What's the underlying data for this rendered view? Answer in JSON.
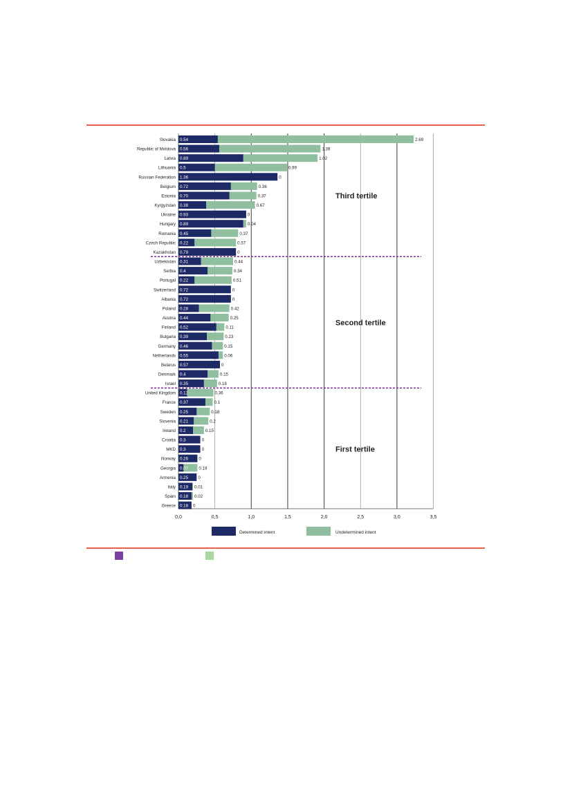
{
  "chart_data": {
    "type": "bar",
    "stacked": true,
    "orientation": "horizontal",
    "categories": [
      "Slovakia",
      "Republic of Moldova",
      "Latvia",
      "Lithuania",
      "Russian Federation",
      "Belgium",
      "Estonia",
      "Kyrgyzstan",
      "Ukraine",
      "Hungary",
      "Romania",
      "Czech Republic",
      "Kazakhstan",
      "Uzbekistan",
      "Serbia",
      "Portugal",
      "Switzerland",
      "Albania",
      "Poland",
      "Austria",
      "Finland",
      "Bulgaria",
      "Germany",
      "Netherlands",
      "Belarus",
      "Denmark",
      "Israel",
      "United Kingdom",
      "France",
      "Sweden",
      "Slovenia",
      "Ireland",
      "Croatia",
      "MKD",
      "Norway",
      "Georgia",
      "Armenia",
      "Italy",
      "Spain",
      "Greece"
    ],
    "series": [
      {
        "name": "Determined intent",
        "color": "#1e2a66",
        "values": [
          0.54,
          0.56,
          0.89,
          0.5,
          1.36,
          0.72,
          0.7,
          0.38,
          0.93,
          0.89,
          0.45,
          0.22,
          0.79,
          0.31,
          0.4,
          0.22,
          0.72,
          0.72,
          0.28,
          0.44,
          0.52,
          0.39,
          0.46,
          0.55,
          0.57,
          0.4,
          0.35,
          0.12,
          0.37,
          0.25,
          0.21,
          0.2,
          0.3,
          0.3,
          0.26,
          0.07,
          0.25,
          0.19,
          0.18,
          0.18
        ],
        "labels": [
          "0.54",
          "0.56",
          "0.89",
          "0.5",
          "1.36",
          "0.72",
          "0.70",
          "0.38",
          "0.93",
          "0.89",
          "0.45",
          "0.22",
          "0.79",
          "0.31",
          "0.4",
          "0.22",
          "0.72",
          "0.72",
          "0.28",
          "0.44",
          "0.52",
          "0.39",
          "0.46",
          "0.55",
          "0.57",
          "0.4",
          "0.35",
          "0.12",
          "0.37",
          "0.25",
          "0.21",
          "0.2",
          "0.3",
          "0.3",
          "0.26",
          "0.07",
          "0.25",
          "0.19",
          "0.18",
          "0.18"
        ]
      },
      {
        "name": "Undetermined intent",
        "color": "#8fbf9f",
        "values": [
          2.69,
          1.39,
          1.02,
          0.99,
          0,
          0.36,
          0.37,
          0.67,
          0,
          0.04,
          0.37,
          0.57,
          0,
          0.44,
          0.34,
          0.51,
          0,
          0,
          0.42,
          0.25,
          0.11,
          0.23,
          0.15,
          0.06,
          0,
          0.15,
          0.18,
          0.36,
          0.1,
          0.18,
          0.2,
          0.15,
          0,
          0,
          0,
          0.19,
          0,
          0.01,
          0.02,
          0
        ],
        "labels": [
          "2.69",
          "1.39",
          "1.02",
          "0.99",
          "0",
          "0.36",
          "0.37",
          "0.67",
          "0",
          "0.04",
          "0.37",
          "0.57",
          "0",
          "0.44",
          "0.34",
          "0.51",
          "0",
          "0",
          "0.42",
          "0.25",
          "0.11",
          "0.23",
          "0.15",
          "0.06",
          "0",
          "0.15",
          "0.18",
          "0.36",
          "0.1",
          "0.18",
          "0.2",
          "0.15",
          "0",
          "0",
          "0",
          "0.19",
          "0",
          "0.01",
          "0.02",
          "0"
        ]
      }
    ],
    "xlim": [
      0,
      3.5
    ],
    "x_ticks": [
      "0,0",
      "0,5",
      "1,0",
      "1,5",
      "2,0",
      "2,5",
      "3,0",
      "3,5"
    ],
    "grid": "vertical",
    "legend_position": "bottom",
    "tertiles": [
      {
        "label": "Third tertile",
        "first": 0,
        "last": 12
      },
      {
        "label": "Second tertile",
        "first": 13,
        "last": 26
      },
      {
        "label": "First tertile",
        "first": 27,
        "last": 39
      }
    ],
    "tertile_line_color": "#7b2a8e"
  },
  "footer_swatches": [
    {
      "name": "purple-swatch",
      "color": "#7b3fa0"
    },
    {
      "name": "green-swatch",
      "color": "#a8d8a0"
    }
  ]
}
